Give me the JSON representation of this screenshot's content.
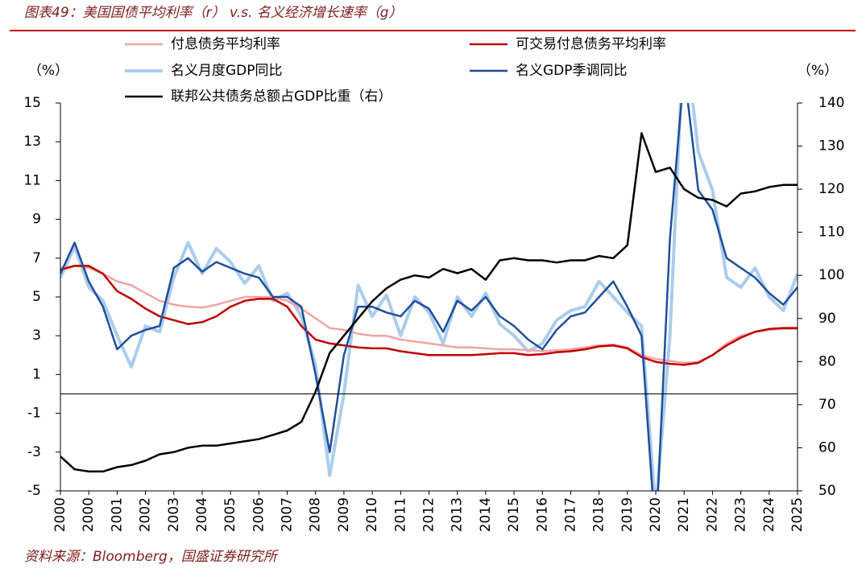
{
  "chart_data": {
    "type": "line",
    "title": "图表49：美国国债平均利率（r） v.s. 名义经济增长速率（g）",
    "source": "资料来源：Bloomberg，国盛证券研究所",
    "y_label": "（%）",
    "y2_label": "（%）",
    "categories": [
      "2000",
      null,
      "2000",
      null,
      "2001",
      null,
      "2002",
      null,
      "2003",
      null,
      "2004",
      null,
      "2005",
      null,
      "2006",
      null,
      "2007",
      null,
      "2008",
      null,
      "2009",
      null,
      "2010",
      null,
      "2011",
      null,
      "2012",
      null,
      "2013",
      null,
      "2014",
      null,
      "2015",
      null,
      "2016",
      null,
      "2017",
      null,
      "2018",
      null,
      "2019",
      null,
      "2020",
      null,
      "2021",
      null,
      "2022",
      null,
      "2023",
      null,
      "2024",
      null,
      "2025"
    ],
    "ylim": [
      -5,
      15
    ],
    "yticks": [
      -5,
      -3,
      -1,
      1,
      3,
      5,
      7,
      9,
      11,
      13,
      15
    ],
    "y2lim": [
      50,
      140
    ],
    "y2ticks": [
      50,
      60,
      70,
      80,
      90,
      100,
      110,
      120,
      130,
      140
    ],
    "series": [
      {
        "name": "付息债务平均利率",
        "color": "#f4a3a3",
        "values": [
          6.5,
          6.6,
          6.5,
          6.2,
          5.8,
          5.6,
          5.2,
          4.8,
          4.6,
          4.5,
          4.45,
          4.6,
          4.8,
          5.0,
          5.0,
          5.0,
          4.8,
          4.4,
          3.9,
          3.4,
          3.3,
          3.1,
          3.0,
          3.0,
          2.8,
          2.7,
          2.6,
          2.5,
          2.4,
          2.4,
          2.35,
          2.3,
          2.3,
          2.25,
          2.2,
          2.25,
          2.3,
          2.4,
          2.5,
          2.55,
          2.4,
          2.0,
          1.8,
          1.7,
          1.6,
          1.65,
          2.0,
          2.6,
          3.0,
          3.2,
          3.3,
          3.35,
          3.35
        ]
      },
      {
        "name": "可交易付息债务平均利率",
        "color": "#c00000",
        "values": [
          6.4,
          6.6,
          6.6,
          6.2,
          5.3,
          4.9,
          4.4,
          4.0,
          3.8,
          3.6,
          3.7,
          4.0,
          4.5,
          4.8,
          4.9,
          4.9,
          4.5,
          3.5,
          2.8,
          2.6,
          2.5,
          2.4,
          2.35,
          2.35,
          2.2,
          2.1,
          2.0,
          2.0,
          2.0,
          2.0,
          2.05,
          2.1,
          2.1,
          2.0,
          2.05,
          2.15,
          2.2,
          2.3,
          2.45,
          2.5,
          2.35,
          1.9,
          1.65,
          1.55,
          1.5,
          1.6,
          2.0,
          2.5,
          2.9,
          3.2,
          3.35,
          3.4,
          3.4
        ]
      },
      {
        "name": "名义月度GDP同比",
        "color": "#abcdeb",
        "values": [
          6.0,
          7.6,
          5.5,
          4.8,
          3.0,
          1.4,
          3.5,
          3.2,
          6.0,
          7.8,
          6.2,
          7.5,
          6.8,
          5.7,
          6.6,
          4.8,
          5.2,
          4.0,
          1.5,
          -4.2,
          0.0,
          5.6,
          4.0,
          5.1,
          3.0,
          5.0,
          4.2,
          2.6,
          5.0,
          4.0,
          5.2,
          3.6,
          3.0,
          2.2,
          2.6,
          3.8,
          4.3,
          4.5,
          5.8,
          5.0,
          4.2,
          3.5,
          -6.0,
          3.0,
          19.0,
          12.5,
          10.5,
          6.0,
          5.5,
          6.5,
          5.0,
          4.3,
          6.2
        ]
      },
      {
        "name": "名义GDP季调同比",
        "color": "#1f4e9c",
        "values": [
          6.2,
          7.8,
          5.8,
          4.5,
          2.3,
          3.0,
          3.3,
          3.5,
          6.5,
          7.0,
          6.3,
          6.8,
          6.5,
          6.2,
          6.0,
          5.0,
          5.0,
          4.5,
          1.0,
          -3.0,
          2.0,
          4.5,
          4.5,
          4.2,
          4.0,
          4.8,
          4.4,
          3.2,
          4.8,
          4.3,
          5.0,
          4.0,
          3.5,
          2.8,
          2.3,
          3.3,
          4.0,
          4.2,
          5.0,
          5.8,
          4.5,
          3.0,
          -7.5,
          8.0,
          16.7,
          10.5,
          9.5,
          7.0,
          6.5,
          6.0,
          5.2,
          4.6,
          5.5
        ]
      },
      {
        "name": "联邦公共债务总额占GDP比重（右）",
        "color": "#000000",
        "axis": "y2",
        "values": [
          58,
          55,
          54.5,
          54.5,
          55.5,
          56,
          57,
          58.5,
          59,
          60,
          60.5,
          60.5,
          61,
          61.5,
          62,
          63,
          64,
          66,
          73,
          82,
          86,
          90,
          94,
          97,
          99,
          100,
          99.5,
          101.5,
          100.5,
          101.5,
          99,
          103.5,
          104,
          103.5,
          103.5,
          103,
          103.5,
          103.5,
          104.5,
          104,
          107,
          133,
          124,
          125,
          120,
          118,
          117.5,
          116,
          119,
          119.5,
          120.5,
          121,
          121
        ]
      }
    ]
  }
}
